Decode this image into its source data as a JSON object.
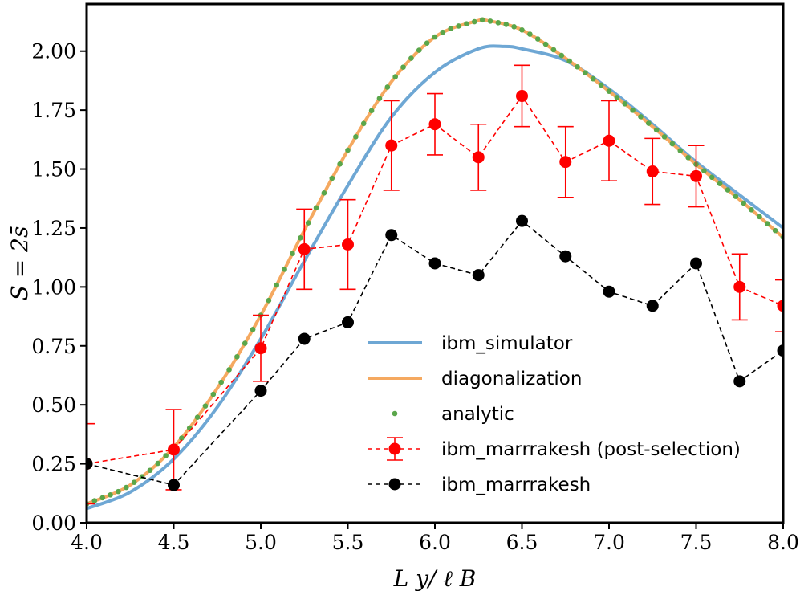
{
  "chart_data": {
    "type": "line",
    "xlabel": "L y/ ℓ B",
    "ylabel": "S = 2s̄",
    "xlim": [
      4.0,
      8.0
    ],
    "ylim": [
      0.0,
      2.2
    ],
    "xticks": [
      "4.0",
      "4.5",
      "5.0",
      "5.5",
      "6.0",
      "6.5",
      "7.0",
      "7.5",
      "8.0"
    ],
    "yticks": [
      "0.00",
      "0.25",
      "0.50",
      "0.75",
      "1.00",
      "1.25",
      "1.50",
      "1.75",
      "2.00"
    ],
    "legend_position": "lower-right",
    "series": [
      {
        "name": "ibm_simulator",
        "style": "solid-line",
        "color": "#6ea7d4",
        "x": [
          4.0,
          4.25,
          4.5,
          4.75,
          5.0,
          5.25,
          5.5,
          5.75,
          6.0,
          6.25,
          6.4,
          6.5,
          6.75,
          7.0,
          7.25,
          7.5,
          7.75,
          8.0
        ],
        "y": [
          0.06,
          0.13,
          0.27,
          0.49,
          0.78,
          1.11,
          1.43,
          1.72,
          1.91,
          2.01,
          2.02,
          2.01,
          1.96,
          1.84,
          1.69,
          1.53,
          1.39,
          1.25
        ]
      },
      {
        "name": "diagonalization",
        "style": "solid-line",
        "color": "#f5a960",
        "x": [
          4.0,
          4.25,
          4.5,
          4.75,
          5.0,
          5.25,
          5.5,
          5.75,
          6.0,
          6.25,
          6.3,
          6.5,
          6.75,
          7.0,
          7.25,
          7.5,
          7.75,
          8.0
        ],
        "y": [
          0.08,
          0.16,
          0.32,
          0.57,
          0.88,
          1.24,
          1.58,
          1.87,
          2.06,
          2.13,
          2.13,
          2.09,
          1.97,
          1.83,
          1.68,
          1.52,
          1.37,
          1.21
        ]
      },
      {
        "name": "analytic",
        "style": "dots",
        "color": "#5aa64a",
        "x": [
          4.0,
          4.25,
          4.5,
          4.75,
          5.0,
          5.25,
          5.5,
          5.75,
          6.0,
          6.25,
          6.3,
          6.5,
          6.75,
          7.0,
          7.25,
          7.5,
          7.75,
          8.0
        ],
        "y": [
          0.08,
          0.16,
          0.32,
          0.57,
          0.88,
          1.24,
          1.58,
          1.87,
          2.06,
          2.13,
          2.13,
          2.09,
          1.97,
          1.83,
          1.68,
          1.52,
          1.37,
          1.21
        ]
      },
      {
        "name": "ibm_marrrakesh (post-selection)",
        "style": "dashed-marker-errorbar",
        "color": "#ff0000",
        "x": [
          4.0,
          4.5,
          5.0,
          5.25,
          5.5,
          5.75,
          6.0,
          6.25,
          6.5,
          6.75,
          7.0,
          7.25,
          7.5,
          7.75,
          8.0
        ],
        "y": [
          0.25,
          0.31,
          0.74,
          1.16,
          1.18,
          1.6,
          1.69,
          1.55,
          1.81,
          1.53,
          1.62,
          1.49,
          1.47,
          1.0,
          0.92
        ],
        "yerr": [
          0.17,
          0.17,
          0.14,
          0.17,
          0.19,
          0.19,
          0.13,
          0.14,
          0.13,
          0.15,
          0.17,
          0.14,
          0.13,
          0.14,
          0.11
        ]
      },
      {
        "name": "ibm_marrrakesh",
        "style": "dashed-marker",
        "color": "#000000",
        "x": [
          4.0,
          4.5,
          5.0,
          5.25,
          5.5,
          5.75,
          6.0,
          6.25,
          6.5,
          6.75,
          7.0,
          7.25,
          7.5,
          7.75,
          8.0
        ],
        "y": [
          0.25,
          0.16,
          0.56,
          0.78,
          0.85,
          1.22,
          1.1,
          1.05,
          1.28,
          1.13,
          0.98,
          0.92,
          1.1,
          0.6,
          0.73
        ]
      }
    ]
  }
}
